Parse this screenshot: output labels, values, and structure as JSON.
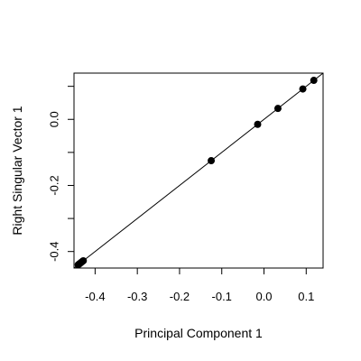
{
  "chart_data": {
    "type": "scatter",
    "title": "",
    "xlabel": "Principal Component 1",
    "ylabel": "Right Singular Vector 1",
    "xlim": [
      -0.45,
      0.14
    ],
    "ylim": [
      -0.45,
      0.14
    ],
    "x_ticks": [
      {
        "value": -0.4,
        "label": "-0.4"
      },
      {
        "value": -0.3,
        "label": "-0.3"
      },
      {
        "value": -0.2,
        "label": "-0.2"
      },
      {
        "value": -0.1,
        "label": "-0.1"
      },
      {
        "value": 0.0,
        "label": "0.0"
      },
      {
        "value": 0.1,
        "label": "0.1"
      }
    ],
    "y_ticks": [
      {
        "value": -0.4,
        "label": "-0.4"
      },
      {
        "value": -0.3,
        "label": ""
      },
      {
        "value": -0.2,
        "label": "-0.2"
      },
      {
        "value": -0.1,
        "label": ""
      },
      {
        "value": 0.0,
        "label": "0.0"
      },
      {
        "value": 0.1,
        "label": ""
      }
    ],
    "points": [
      {
        "x": -0.44,
        "y": -0.44
      },
      {
        "x": -0.437,
        "y": -0.437
      },
      {
        "x": -0.434,
        "y": -0.434
      },
      {
        "x": -0.431,
        "y": -0.431
      },
      {
        "x": -0.428,
        "y": -0.428
      },
      {
        "x": -0.125,
        "y": -0.125
      },
      {
        "x": -0.015,
        "y": -0.015
      },
      {
        "x": 0.033,
        "y": 0.033
      },
      {
        "x": 0.092,
        "y": 0.092
      },
      {
        "x": 0.118,
        "y": 0.118
      }
    ],
    "reference_line": {
      "intercept": 0,
      "slope": 1
    },
    "grid": false,
    "legend": "none",
    "colors": {
      "points": "#000000",
      "line": "#000000",
      "axes": "#000000"
    }
  }
}
